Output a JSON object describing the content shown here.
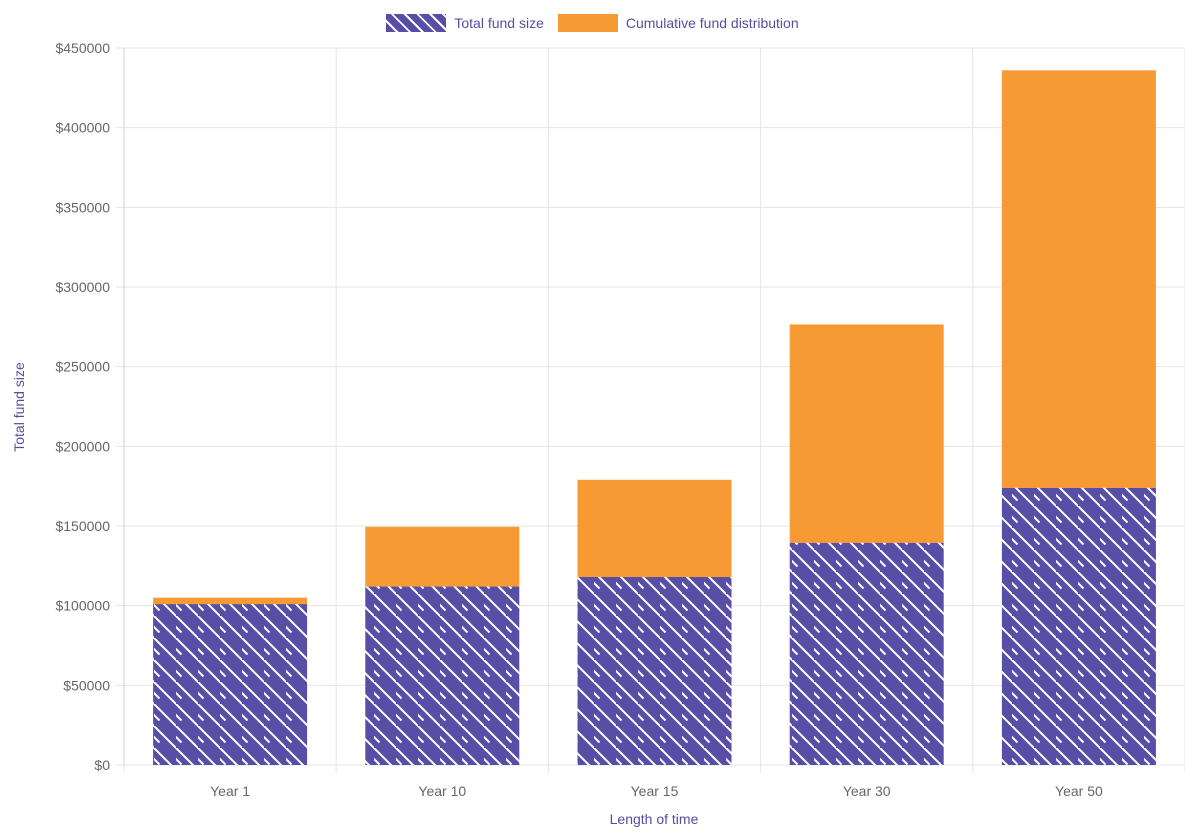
{
  "colors": {
    "fund_size": "#584ea6",
    "distribution": "#f79a33",
    "label_text": "#5b4ba1",
    "tick_text": "#666666",
    "grid": "#e5e5e5"
  },
  "legend": {
    "items": [
      {
        "label": "Total fund size",
        "pattern": "hatched"
      },
      {
        "label": "Cumulative fund distribution",
        "pattern": "solid"
      }
    ],
    "position": "top-center"
  },
  "chart_data": {
    "type": "bar",
    "stacked": true,
    "categories": [
      "Year 1",
      "Year 10",
      "Year 15",
      "Year 30",
      "Year 50"
    ],
    "series": [
      {
        "name": "Total fund size",
        "values": [
          101000,
          112000,
          118000,
          139500,
          174000
        ]
      },
      {
        "name": "Cumulative fund distribution",
        "values": [
          4000,
          37500,
          61000,
          137000,
          262000
        ]
      }
    ],
    "xlabel": "Length of time",
    "ylabel": "Total fund size",
    "ylim": [
      0,
      450000
    ],
    "yticks": [
      0,
      50000,
      100000,
      150000,
      200000,
      250000,
      300000,
      350000,
      400000,
      450000
    ],
    "ytick_labels": [
      "$0",
      "$50000",
      "$100000",
      "$150000",
      "$200000",
      "$250000",
      "$300000",
      "$350000",
      "$400000",
      "$450000"
    ],
    "grid": true
  }
}
